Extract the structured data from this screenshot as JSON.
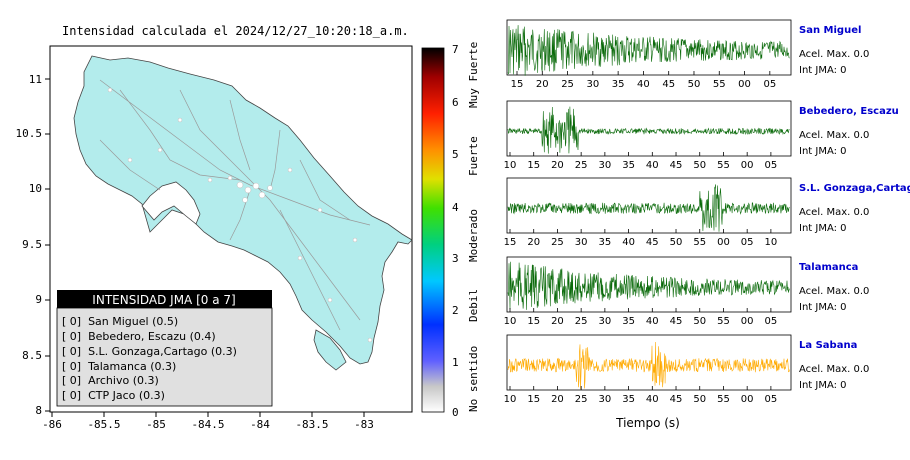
{
  "map": {
    "title": "Intensidad calculada el 2024/12/27_10:20:18_a.m.",
    "x_ticks": [
      "-86",
      "-85.5",
      "-85",
      "-84.5",
      "-84",
      "-83.5",
      "-83"
    ],
    "y_ticks": [
      "11",
      "10.5",
      "10",
      "9.5",
      "9",
      "8.5",
      "8"
    ],
    "colorbar_ticks": [
      "7",
      "6",
      "5",
      "4",
      "3",
      "2",
      "1",
      "0"
    ],
    "colorbar_labels": [
      "Muy Fuerte",
      "Fuerte",
      "Moderado",
      "Debil",
      "No sentido"
    ]
  },
  "legend": {
    "title": "INTENSIDAD JMA [0 a 7]",
    "items": [
      "[ 0]  San Miguel (0.5)",
      "[ 0]  Bebedero, Escazu (0.4)",
      "[ 0]  S.L. Gonzaga,Cartago (0.3)",
      "[ 0]  Talamanca (0.3)",
      "[ 0]  Archivo (0.3)",
      "[ 0]  CTP Jaco (0.3)"
    ]
  },
  "stations": [
    {
      "name": "San Miguel",
      "acel": "Acel. Max. 0.0",
      "int": "Int JMA: 0",
      "ticks": [
        "15",
        "20",
        "25",
        "30",
        "35",
        "40",
        "45",
        "50",
        "55",
        "00",
        "05"
      ],
      "color": "#0a6a0a"
    },
    {
      "name": "Bebedero, Escazu",
      "acel": "Acel. Max. 0.0",
      "int": "Int JMA: 0",
      "ticks": [
        "10",
        "15",
        "20",
        "25",
        "30",
        "35",
        "40",
        "45",
        "50",
        "55",
        "00",
        "05"
      ],
      "color": "#0a6a0a"
    },
    {
      "name": "S.L. Gonzaga,Cartago",
      "acel": "Acel. Max. 0.0",
      "int": "Int JMA: 0",
      "ticks": [
        "15",
        "20",
        "25",
        "30",
        "35",
        "40",
        "45",
        "50",
        "55",
        "00",
        "05",
        "10"
      ],
      "color": "#0a6a0a"
    },
    {
      "name": "Talamanca",
      "acel": "Acel. Max. 0.0",
      "int": "Int JMA: 0",
      "ticks": [
        "10",
        "15",
        "20",
        "25",
        "30",
        "35",
        "40",
        "45",
        "50",
        "55",
        "00",
        "05"
      ],
      "color": "#0a6a0a"
    },
    {
      "name": "La Sabana",
      "acel": "Acel. Max. 0.0",
      "int": "Int JMA: 0",
      "ticks": [
        "10",
        "15",
        "20",
        "25",
        "30",
        "35",
        "40",
        "45",
        "50",
        "55",
        "00",
        "05"
      ],
      "color": "#ffaa00"
    }
  ],
  "xlabel": "Tiempo (s)",
  "chart_data": {
    "type": "map",
    "title": "Intensidad calculada el 2024/12/27_10:20:18_a.m.",
    "xlim": [
      -86,
      -82.5
    ],
    "ylim": [
      8,
      11.3
    ],
    "colorbar_range": [
      0,
      7
    ],
    "stations_intensity": [
      {
        "name": "San Miguel",
        "value": 0.5
      },
      {
        "name": "Bebedero, Escazu",
        "value": 0.4
      },
      {
        "name": "S.L. Gonzaga,Cartago",
        "value": 0.3
      },
      {
        "name": "Talamanca",
        "value": 0.3
      },
      {
        "name": "Archivo",
        "value": 0.3
      },
      {
        "name": "CTP Jaco",
        "value": 0.3
      }
    ]
  }
}
